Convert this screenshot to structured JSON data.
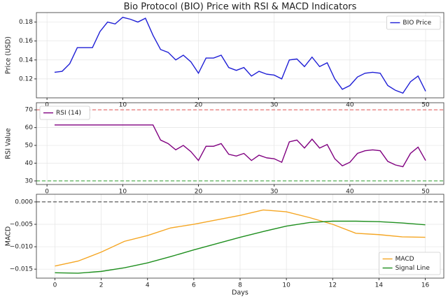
{
  "chart_data": [
    {
      "type": "line",
      "title": "Bio Protocol (BIO) Price with RSI & MACD Indicators",
      "ylabel": "Price (USD)",
      "x": [
        1,
        2,
        3,
        4,
        5,
        6,
        7,
        8,
        9,
        10,
        11,
        12,
        13,
        14,
        15,
        16,
        17,
        18,
        19,
        20,
        21,
        22,
        23,
        24,
        25,
        26,
        27,
        28,
        29,
        30,
        31,
        32,
        33,
        34,
        35,
        36,
        37,
        38,
        39,
        40,
        41,
        42,
        43,
        44,
        45,
        46,
        47,
        48,
        49,
        50
      ],
      "series": [
        {
          "name": "BIO Price",
          "color": "#1f1fd6",
          "values": [
            0.127,
            0.128,
            0.136,
            0.153,
            0.153,
            0.153,
            0.17,
            0.18,
            0.178,
            0.185,
            0.183,
            0.18,
            0.184,
            0.166,
            0.151,
            0.148,
            0.14,
            0.145,
            0.138,
            0.126,
            0.142,
            0.142,
            0.145,
            0.132,
            0.129,
            0.132,
            0.123,
            0.128,
            0.125,
            0.124,
            0.12,
            0.14,
            0.141,
            0.133,
            0.143,
            0.133,
            0.137,
            0.12,
            0.109,
            0.113,
            0.122,
            0.126,
            0.127,
            0.126,
            0.113,
            0.108,
            0.105,
            0.117,
            0.123,
            0.107
          ]
        }
      ],
      "xlim": [
        -1.4,
        52.4
      ],
      "xticks": [
        0,
        10,
        20,
        30,
        40,
        50
      ],
      "ylim": [
        0.1,
        0.19
      ],
      "yticks": [
        0.12,
        0.14,
        0.16,
        0.18
      ],
      "grid": true,
      "legend": "upper right"
    },
    {
      "type": "line",
      "ylabel": "RSI Value",
      "x": [
        1,
        2,
        3,
        4,
        5,
        6,
        7,
        8,
        9,
        10,
        11,
        12,
        13,
        14,
        15,
        16,
        17,
        18,
        19,
        20,
        21,
        22,
        23,
        24,
        25,
        26,
        27,
        28,
        29,
        30,
        31,
        32,
        33,
        34,
        35,
        36,
        37,
        38,
        39,
        40,
        41,
        42,
        43,
        44,
        45,
        46,
        47,
        48,
        49,
        50
      ],
      "series": [
        {
          "name": "RSI (14)",
          "color": "#800080",
          "values": [
            61.5,
            61.5,
            61.5,
            61.5,
            61.5,
            61.5,
            61.5,
            61.5,
            61.5,
            61.5,
            61.5,
            61.5,
            61.5,
            61.5,
            53,
            51,
            47.5,
            50,
            46.5,
            41.5,
            49.5,
            49.5,
            51,
            45,
            44,
            45.5,
            41.5,
            44.5,
            43,
            42.5,
            40.5,
            52,
            53,
            48.5,
            53.5,
            48.5,
            50.5,
            42.5,
            38.5,
            40.5,
            45.5,
            47,
            47.5,
            47,
            41,
            39,
            38,
            45.5,
            49,
            41.5
          ]
        }
      ],
      "reference_lines": [
        {
          "value": 70,
          "color": "#e05050"
        },
        {
          "value": 30,
          "color": "#2a9a2a"
        }
      ],
      "xlim": [
        -1.4,
        52.4
      ],
      "xticks": [
        0,
        10,
        20,
        30,
        40,
        50
      ],
      "ylim": [
        28,
        74
      ],
      "yticks": [
        30,
        40,
        50,
        60,
        70
      ],
      "grid": true,
      "legend": "upper left"
    },
    {
      "type": "line",
      "ylabel": "MACD",
      "xlabel": "Days",
      "x": [
        0,
        1,
        2,
        3,
        4,
        5,
        6,
        7,
        8,
        9,
        10,
        11,
        12,
        13,
        14,
        15,
        16
      ],
      "series": [
        {
          "name": "MACD",
          "color": "#f5a623",
          "values": [
            -0.0143,
            -0.0132,
            -0.0112,
            -0.0088,
            -0.0075,
            -0.0058,
            -0.005,
            -0.004,
            -0.003,
            -0.0018,
            -0.0022,
            -0.0035,
            -0.005,
            -0.007,
            -0.0073,
            -0.0078,
            -0.0079
          ]
        },
        {
          "name": "Signal Line",
          "color": "#1f8f1f",
          "values": [
            -0.0158,
            -0.0159,
            -0.0155,
            -0.0147,
            -0.0136,
            -0.0122,
            -0.0107,
            -0.0093,
            -0.0079,
            -0.0066,
            -0.0054,
            -0.0046,
            -0.0043,
            -0.0043,
            -0.0044,
            -0.0047,
            -0.0051
          ]
        }
      ],
      "reference_lines": [
        {
          "value": 0,
          "color": "#333333"
        }
      ],
      "xlim": [
        -0.8,
        16.8
      ],
      "xticks": [
        0,
        2,
        4,
        6,
        8,
        10,
        12,
        14,
        16
      ],
      "ylim": [
        -0.017,
        0.0017
      ],
      "yticks": [
        {
          "value": -0.015,
          "label": "−0.015"
        },
        {
          "value": -0.01,
          "label": "−0.010"
        },
        {
          "value": -0.005,
          "label": "−0.005"
        },
        {
          "value": 0,
          "label": "0.000"
        }
      ],
      "grid": true,
      "legend": "lower right"
    }
  ]
}
